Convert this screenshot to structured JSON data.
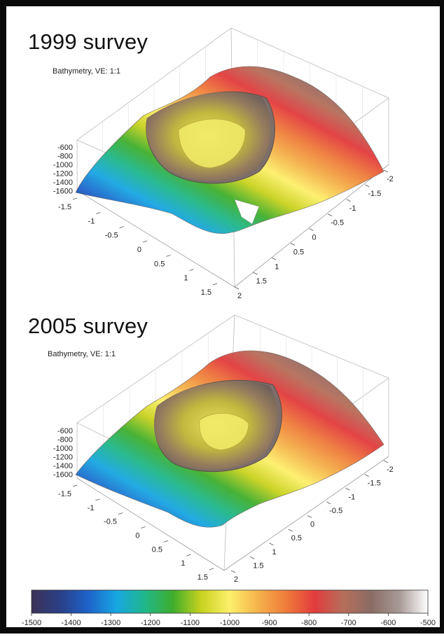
{
  "panels": [
    {
      "title": "1999 survey",
      "subtitle": "Bathymetry, VE: 1:1",
      "z_ticks": [
        "-600",
        "-800",
        "-1000",
        "-1200",
        "-1400",
        "-1600"
      ],
      "left_ticks": [
        "-1.5",
        "-1",
        "-0.5",
        "0",
        "0.5",
        "1",
        "1.5"
      ],
      "right_ticks": [
        "2",
        "1.5",
        "1",
        "0.5",
        "0",
        "-0.5",
        "-1",
        "-1.5",
        "-2"
      ]
    },
    {
      "title": "2005 survey",
      "subtitle": "Bathymetry, VE: 1:1",
      "z_ticks": [
        "-600",
        "-800",
        "-1000",
        "-1200",
        "-1400",
        "-1600"
      ],
      "left_ticks": [
        "-1.5",
        "-1",
        "-0.5",
        "0",
        "0.5",
        "1",
        "1.5"
      ],
      "right_ticks": [
        "2",
        "1.5",
        "1",
        "0.5",
        "0",
        "-0.5",
        "-1",
        "-1.5",
        "-2"
      ]
    }
  ],
  "colorbar": {
    "min": -1500,
    "max": -500,
    "ticks": [
      "-1500",
      "-1400",
      "-1300",
      "-1200",
      "-1100",
      "-1000",
      "-900",
      "-800",
      "-700",
      "-600",
      "-500"
    ],
    "stops": [
      "#3d3358",
      "#2a3f86",
      "#1e62c9",
      "#18a6e3",
      "#1fb78a",
      "#3fae2c",
      "#c9d21e",
      "#fdf06b",
      "#f5b24a",
      "#ef7b3a",
      "#e23b3d",
      "#b66e5a",
      "#8a6c65",
      "#a89a96",
      "#ffffff"
    ]
  },
  "chart_data": [
    {
      "type": "surface",
      "title": "1999 survey",
      "subtitle": "Bathymetry, VE: 1:1",
      "zlim": [
        -1600,
        -600
      ],
      "x_range": [
        -1.5,
        1.5
      ],
      "y_range": [
        -2,
        2
      ]
    },
    {
      "type": "surface",
      "title": "2005 survey",
      "subtitle": "Bathymetry, VE: 1:1",
      "zlim": [
        -1600,
        -600
      ],
      "x_range": [
        -1.5,
        1.5
      ],
      "y_range": [
        -2,
        2
      ]
    }
  ]
}
